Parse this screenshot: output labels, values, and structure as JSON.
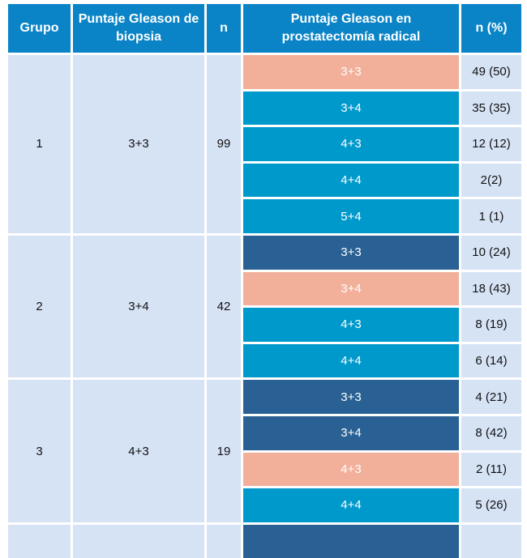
{
  "colors": {
    "header": "#0a84c6",
    "light": "#d6e3f5",
    "concordant": "#f2b09a",
    "upgrade": "#0099cc",
    "downgrade": "#2a6194"
  },
  "headers": [
    "Grupo",
    "Puntaje Gleason de biopsia",
    "n",
    "Puntaje Gleason en prostatectomía radical",
    "n (%)"
  ],
  "groups": [
    {
      "grupo": "1",
      "biopsia": "3+3",
      "n": "99",
      "rows": [
        {
          "score": "3+3",
          "np": "49 (50)",
          "kind": "concordant"
        },
        {
          "score": "3+4",
          "np": "35 (35)",
          "kind": "upgrade"
        },
        {
          "score": "4+3",
          "np": "12 (12)",
          "kind": "upgrade"
        },
        {
          "score": "4+4",
          "np": "2(2)",
          "kind": "upgrade"
        },
        {
          "score": "5+4",
          "np": "1 (1)",
          "kind": "upgrade"
        }
      ]
    },
    {
      "grupo": "2",
      "biopsia": "3+4",
      "n": "42",
      "rows": [
        {
          "score": "3+3",
          "np": "10 (24)",
          "kind": "downgrade"
        },
        {
          "score": "3+4",
          "np": "18 (43)",
          "kind": "concordant"
        },
        {
          "score": "4+3",
          "np": "8 (19)",
          "kind": "upgrade"
        },
        {
          "score": "4+4",
          "np": "6 (14)",
          "kind": "upgrade"
        }
      ]
    },
    {
      "grupo": "3",
      "biopsia": "4+3",
      "n": "19",
      "rows": [
        {
          "score": "3+3",
          "np": "4 (21)",
          "kind": "downgrade"
        },
        {
          "score": "3+4",
          "np": "8 (42)",
          "kind": "downgrade"
        },
        {
          "score": "4+3",
          "np": "2 (11)",
          "kind": "concordant"
        },
        {
          "score": "4+4",
          "np": "5 (26)",
          "kind": "upgrade"
        }
      ]
    }
  ]
}
